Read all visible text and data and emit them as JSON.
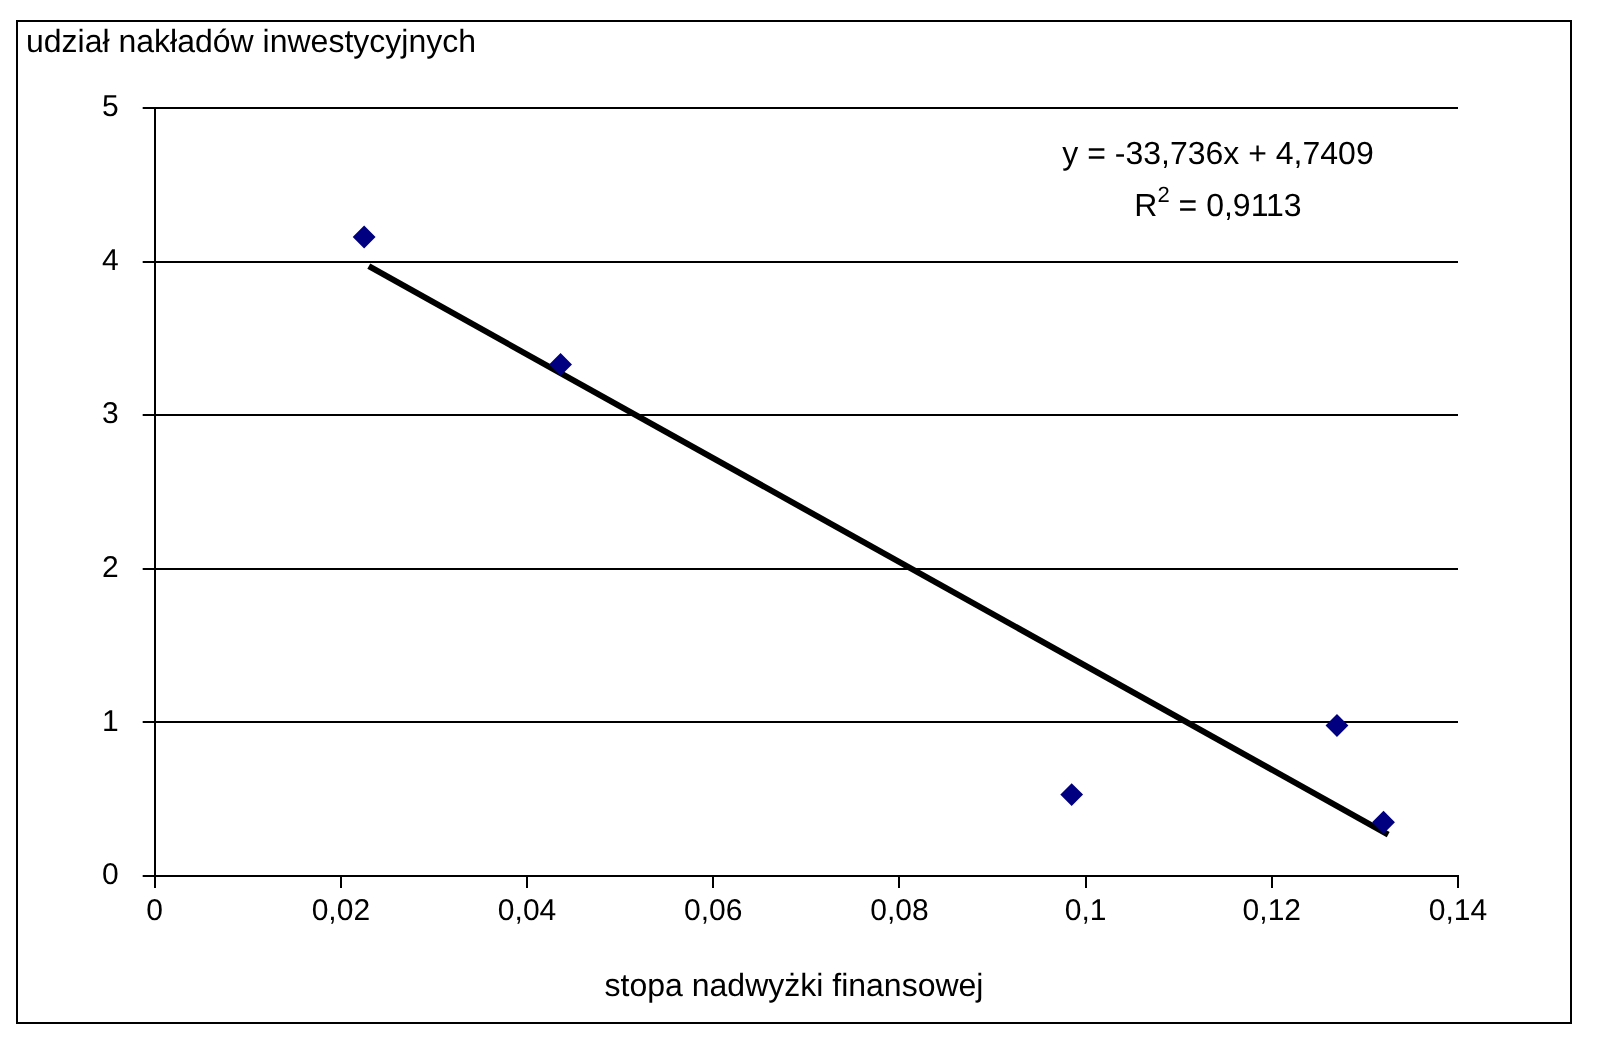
{
  "chart_data": {
    "type": "scatter",
    "xlabel": "stopa nadwyżki finansowej",
    "ylabel": "udział nakładów inwestycyjnych",
    "annotations": [
      "y = -33,736x + 4,7409",
      "R$^{2}$ = 0,9113"
    ],
    "series": [
      {
        "type": "scatter",
        "color": "#000080",
        "x": [
          0.0225,
          0.0436,
          0.0985,
          0.127,
          0.132
        ],
        "values": [
          4.16,
          3.33,
          0.53,
          0.98,
          0.35
        ],
        "marker": "diamond"
      },
      {
        "type": "line",
        "color": "#000000",
        "x": [
          0.023,
          0.1325
        ],
        "values": [
          3.97,
          0.27
        ],
        "marker": "none",
        "line_style": "solid"
      }
    ],
    "xlim": [
      0,
      0.14
    ],
    "xticks": [
      0,
      {
        "value": 0.02,
        "label": "0,02"
      },
      {
        "value": 0.04,
        "label": "0,04"
      },
      {
        "value": 0.06,
        "label": "0,06"
      },
      {
        "value": 0.08,
        "label": "0,08"
      },
      {
        "value": 0.1,
        "label": "0,1"
      },
      {
        "value": 0.12,
        "label": "0,12"
      },
      {
        "value": 0.14,
        "label": "0,14"
      }
    ],
    "ylim": [
      0,
      5
    ],
    "yticks": [
      0,
      1,
      2,
      3,
      4,
      5
    ],
    "grid": "y",
    "legend": false
  }
}
